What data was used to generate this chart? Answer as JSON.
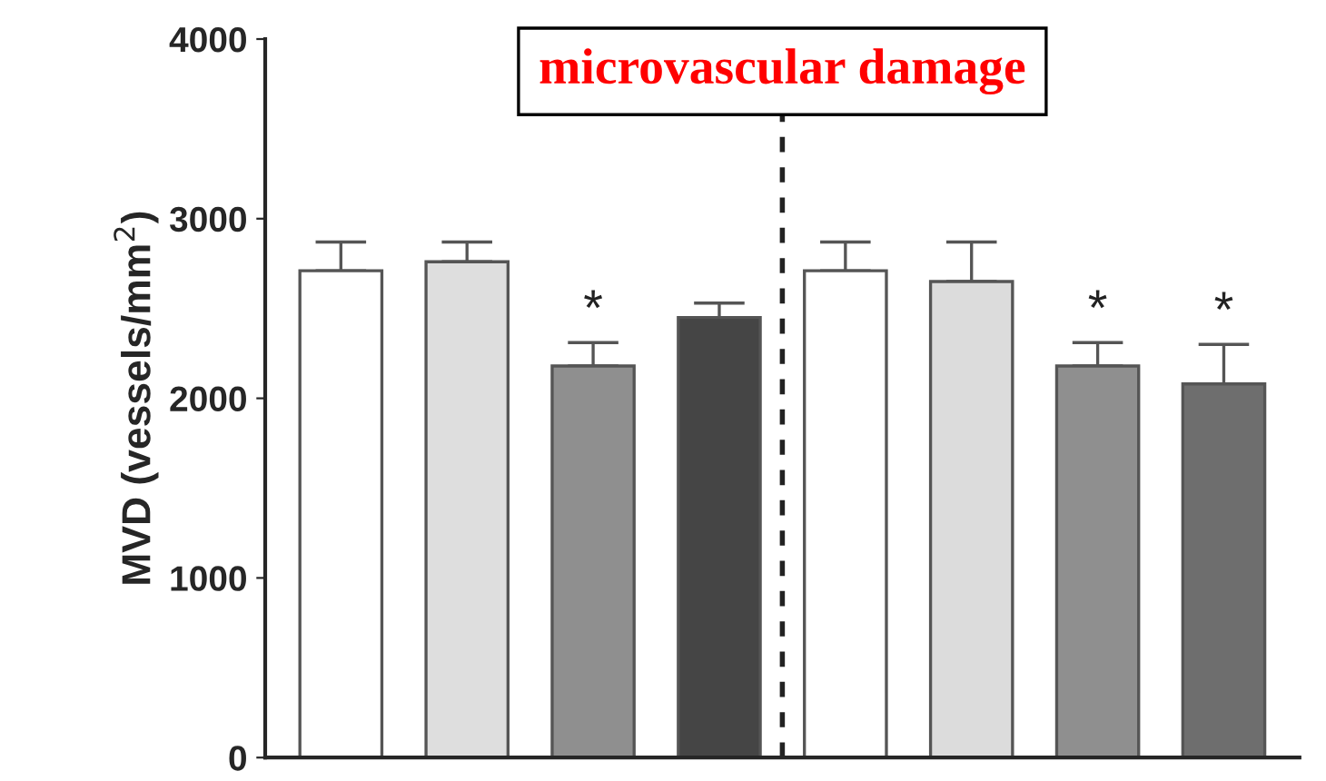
{
  "chart_data": {
    "type": "bar",
    "title": "microvascular damage",
    "ylabel": "MVD (vessels/mm$^{2}$)",
    "categories": [
      null,
      null,
      null,
      null,
      null,
      null,
      null,
      null
    ],
    "values": [
      2710,
      2760,
      2180,
      2450,
      2710,
      2650,
      2180,
      2080
    ],
    "errors": [
      160,
      110,
      130,
      80,
      160,
      220,
      130,
      220
    ],
    "colors": [
      "#ffffff",
      "#dedede",
      "#8f8f8f",
      "#454545",
      "#ffffff",
      "#dcdcdc",
      "#8f8f8f",
      "#6e6e6e"
    ],
    "value_labels": [
      null,
      null,
      "*",
      null,
      null,
      null,
      "*",
      "*"
    ],
    "ylim": [
      0,
      4000
    ],
    "yticks": [
      0,
      1000,
      2000,
      3000,
      4000
    ],
    "grid": false,
    "legend": false
  }
}
